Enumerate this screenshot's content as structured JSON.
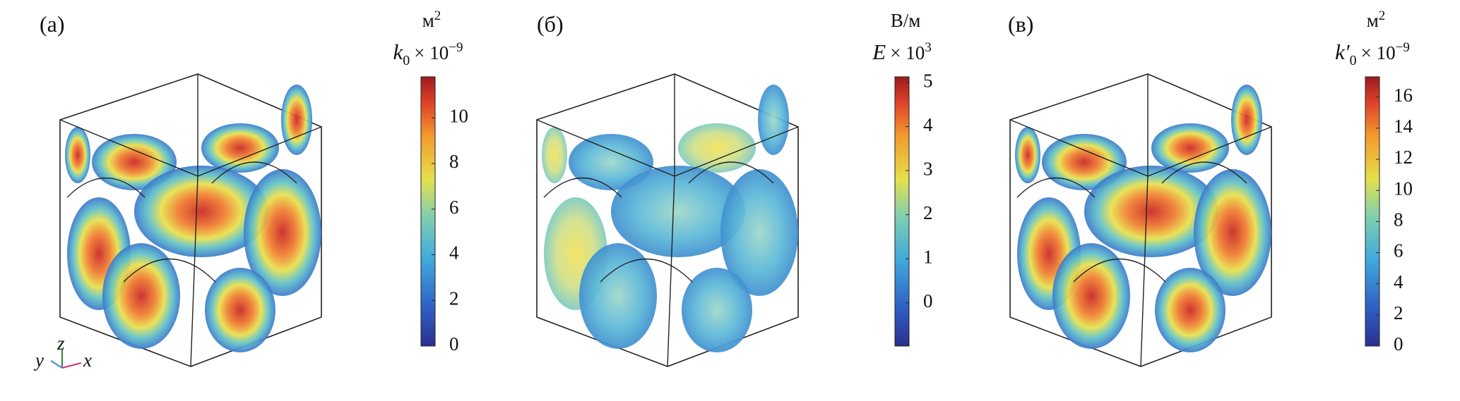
{
  "panels": [
    {
      "label": "(а)",
      "unit": "м",
      "unit_exponent": "2",
      "symbol": "k",
      "subscript": "0",
      "multiplier": "× 10",
      "exponent": "−9",
      "colorbar": {
        "lim": [
          0,
          11.8
        ],
        "ticks": [
          0,
          2,
          4,
          6,
          8,
          10
        ]
      }
    },
    {
      "label": "(б)",
      "unit": "В/м",
      "symbol": "E",
      "multiplier": "× 10",
      "exponent": "3",
      "colorbar": {
        "lim": [
          -0.98,
          5.13
        ],
        "ticks": [
          0,
          1,
          2,
          3,
          4,
          5
        ]
      }
    },
    {
      "label": "(в)",
      "unit": "м",
      "unit_exponent": "2",
      "symbol": "k′",
      "subscript": "0",
      "multiplier": "× 10",
      "exponent": "−9",
      "colorbar": {
        "lim": [
          0,
          17.3
        ],
        "ticks": [
          0,
          2,
          4,
          6,
          8,
          10,
          12,
          14,
          16
        ]
      }
    }
  ],
  "axes_triad": {
    "y": "y",
    "z": "z",
    "x": "x"
  }
}
